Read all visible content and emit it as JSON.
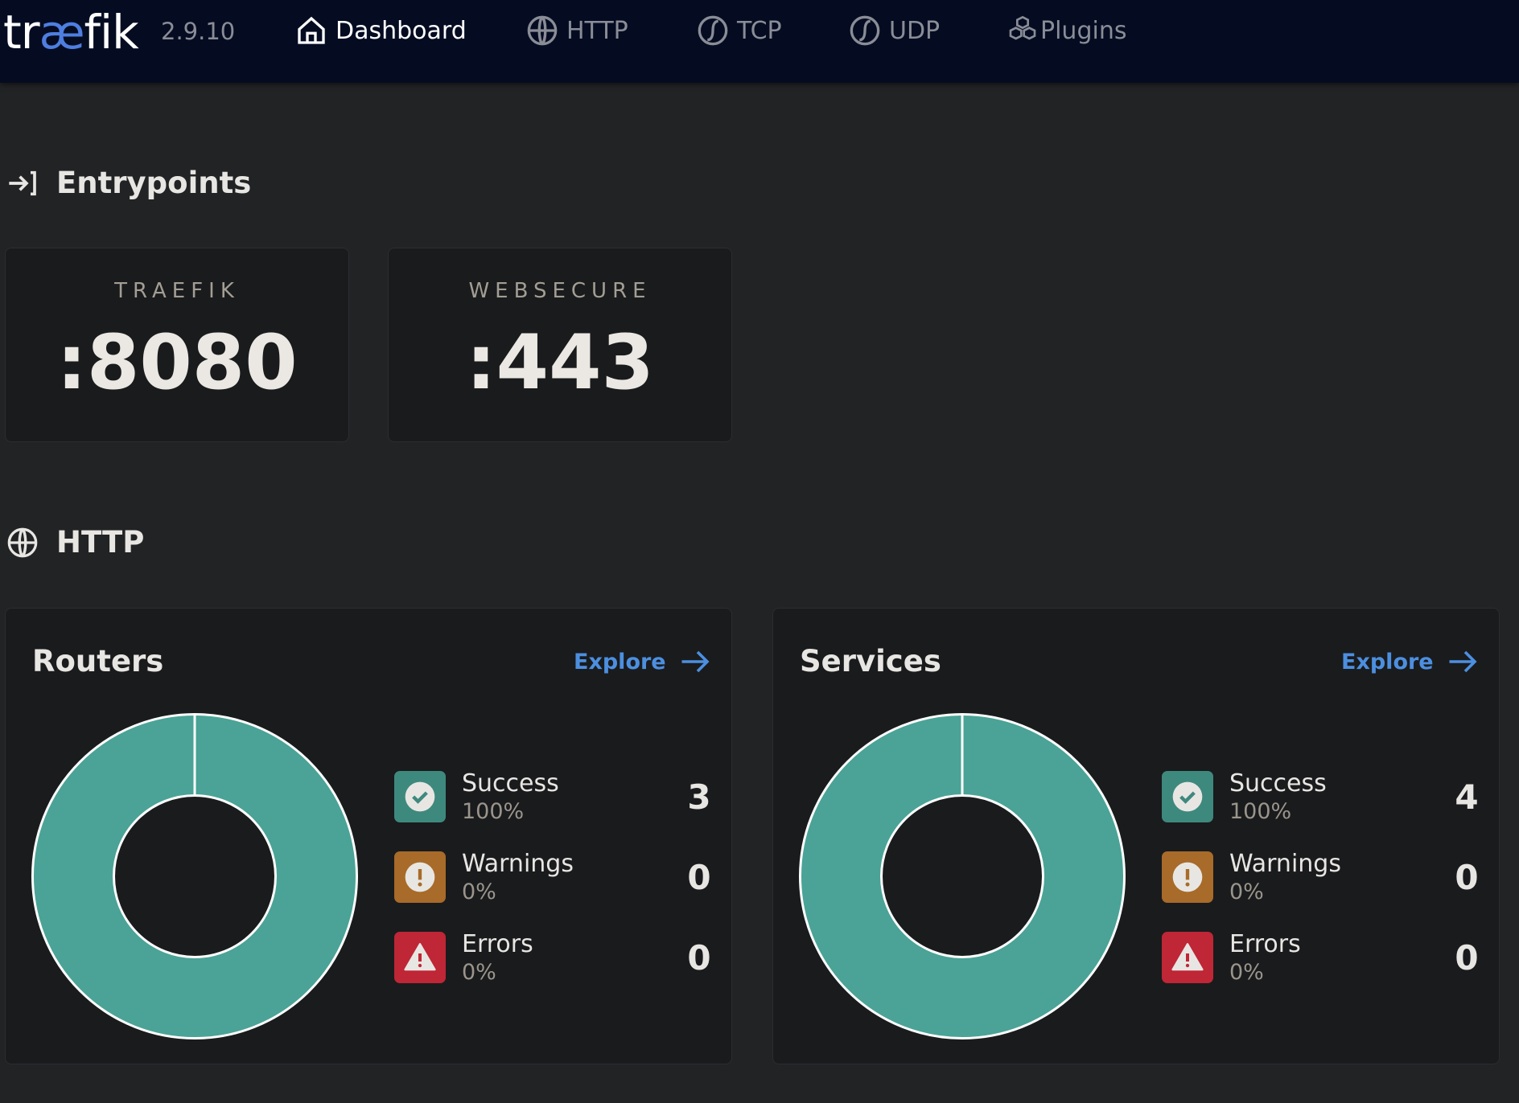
{
  "header": {
    "logo": {
      "pre": "tr",
      "ae": "æ",
      "post": "fik"
    },
    "version": "2.9.10",
    "nav": [
      {
        "label": "Dashboard"
      },
      {
        "label": "HTTP"
      },
      {
        "label": "TCP"
      },
      {
        "label": "UDP"
      },
      {
        "label": "Plugins"
      }
    ]
  },
  "entrypoints": {
    "title": "Entrypoints",
    "items": [
      {
        "name": "TRAEFIK",
        "port": ":8080"
      },
      {
        "name": "WEBSECURE",
        "port": ":443"
      }
    ]
  },
  "http": {
    "title": "HTTP",
    "cards": [
      {
        "title": "Routers",
        "explore": "Explore",
        "legend": [
          {
            "label": "Success",
            "percent": "100%",
            "count": "3"
          },
          {
            "label": "Warnings",
            "percent": "0%",
            "count": "0"
          },
          {
            "label": "Errors",
            "percent": "0%",
            "count": "0"
          }
        ]
      },
      {
        "title": "Services",
        "explore": "Explore",
        "legend": [
          {
            "label": "Success",
            "percent": "100%",
            "count": "4"
          },
          {
            "label": "Warnings",
            "percent": "0%",
            "count": "0"
          },
          {
            "label": "Errors",
            "percent": "0%",
            "count": "0"
          }
        ]
      }
    ]
  },
  "colors": {
    "success": "#3e897d",
    "warning": "#a86b29",
    "error": "#bf2636",
    "donut": "#4aa396",
    "accent": "#4c8fe0"
  }
}
